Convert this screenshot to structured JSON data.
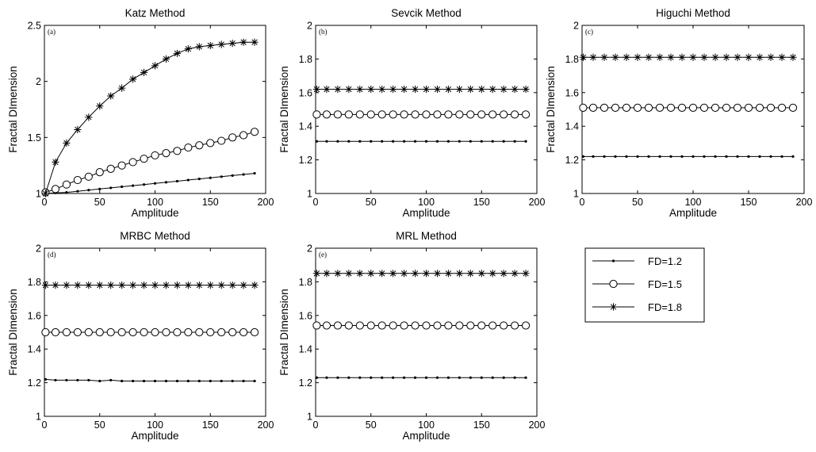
{
  "colors": {
    "background": "#ffffff",
    "ink": "#000000",
    "marker_fill": "#ffffff"
  },
  "legend": {
    "entries": [
      {
        "label": "FD=1.2",
        "marker": "dot"
      },
      {
        "label": "FD=1.5",
        "marker": "circle"
      },
      {
        "label": "FD=1.8",
        "marker": "asterisk"
      }
    ]
  },
  "chart_data": [
    {
      "type": "line",
      "tag": "(a)",
      "title": "Katz Method",
      "xlabel": "Amplitude",
      "ylabel": "Fractal DImension",
      "xlim": [
        0,
        200
      ],
      "ylim": [
        1,
        2.5
      ],
      "xticks": [
        0,
        50,
        100,
        150,
        200
      ],
      "yticks": [
        1,
        1.5,
        2,
        2.5
      ],
      "ytick_labels": [
        "1",
        "1.5",
        "2",
        "2.5"
      ],
      "x": [
        1,
        10,
        20,
        30,
        40,
        50,
        60,
        70,
        80,
        90,
        100,
        110,
        120,
        130,
        140,
        150,
        160,
        170,
        180,
        190
      ],
      "series": [
        {
          "name": "FD=1.2",
          "marker": "dot",
          "values": [
            1.0,
            1.005,
            1.01,
            1.02,
            1.03,
            1.04,
            1.05,
            1.06,
            1.07,
            1.08,
            1.09,
            1.1,
            1.11,
            1.12,
            1.13,
            1.14,
            1.15,
            1.16,
            1.17,
            1.18
          ]
        },
        {
          "name": "FD=1.5",
          "marker": "circle",
          "values": [
            1.01,
            1.04,
            1.08,
            1.12,
            1.15,
            1.19,
            1.22,
            1.25,
            1.28,
            1.31,
            1.34,
            1.36,
            1.38,
            1.41,
            1.43,
            1.45,
            1.47,
            1.5,
            1.52,
            1.55
          ]
        },
        {
          "name": "FD=1.8",
          "marker": "asterisk",
          "values": [
            1.0,
            1.28,
            1.45,
            1.57,
            1.68,
            1.78,
            1.87,
            1.94,
            2.02,
            2.08,
            2.14,
            2.2,
            2.25,
            2.29,
            2.31,
            2.32,
            2.33,
            2.34,
            2.35,
            2.35
          ]
        }
      ]
    },
    {
      "type": "line",
      "tag": "(b)",
      "title": "Sevcik Method",
      "xlabel": "Amplitude",
      "ylabel": "Fractal DImension",
      "xlim": [
        0,
        200
      ],
      "ylim": [
        1,
        2
      ],
      "xticks": [
        0,
        50,
        100,
        150,
        200
      ],
      "yticks": [
        1,
        1.2,
        1.4,
        1.6,
        1.8,
        2
      ],
      "ytick_labels": [
        "1",
        "1.2",
        "1.4",
        "1.6",
        "1.8",
        "2"
      ],
      "x": [
        1,
        10,
        20,
        30,
        40,
        50,
        60,
        70,
        80,
        90,
        100,
        110,
        120,
        130,
        140,
        150,
        160,
        170,
        180,
        190
      ],
      "series": [
        {
          "name": "FD=1.2",
          "marker": "dot",
          "values": [
            1.31,
            1.31,
            1.31,
            1.31,
            1.31,
            1.31,
            1.31,
            1.31,
            1.31,
            1.31,
            1.31,
            1.31,
            1.31,
            1.31,
            1.31,
            1.31,
            1.31,
            1.31,
            1.31,
            1.31
          ]
        },
        {
          "name": "FD=1.5",
          "marker": "circle",
          "values": [
            1.47,
            1.47,
            1.47,
            1.47,
            1.47,
            1.47,
            1.47,
            1.47,
            1.47,
            1.47,
            1.47,
            1.47,
            1.47,
            1.47,
            1.47,
            1.47,
            1.47,
            1.47,
            1.47,
            1.47
          ]
        },
        {
          "name": "FD=1.8",
          "marker": "asterisk",
          "values": [
            1.62,
            1.62,
            1.62,
            1.62,
            1.62,
            1.62,
            1.62,
            1.62,
            1.62,
            1.62,
            1.62,
            1.62,
            1.62,
            1.62,
            1.62,
            1.62,
            1.62,
            1.62,
            1.62,
            1.62
          ]
        }
      ]
    },
    {
      "type": "line",
      "tag": "(c)",
      "title": "Higuchi Method",
      "xlabel": "Amplitude",
      "ylabel": "Fractal DImension",
      "xlim": [
        0,
        200
      ],
      "ylim": [
        1,
        2
      ],
      "xticks": [
        0,
        50,
        100,
        150,
        200
      ],
      "yticks": [
        1,
        1.2,
        1.4,
        1.6,
        1.8,
        2
      ],
      "ytick_labels": [
        "1",
        "1.2",
        "1.4",
        "1.6",
        "1.8",
        "2"
      ],
      "x": [
        1,
        10,
        20,
        30,
        40,
        50,
        60,
        70,
        80,
        90,
        100,
        110,
        120,
        130,
        140,
        150,
        160,
        170,
        180,
        190
      ],
      "series": [
        {
          "name": "FD=1.2",
          "marker": "dot",
          "values": [
            1.22,
            1.22,
            1.22,
            1.22,
            1.22,
            1.22,
            1.22,
            1.22,
            1.22,
            1.22,
            1.22,
            1.22,
            1.22,
            1.22,
            1.22,
            1.22,
            1.22,
            1.22,
            1.22,
            1.22
          ]
        },
        {
          "name": "FD=1.5",
          "marker": "circle",
          "values": [
            1.51,
            1.51,
            1.51,
            1.51,
            1.51,
            1.51,
            1.51,
            1.51,
            1.51,
            1.51,
            1.51,
            1.51,
            1.51,
            1.51,
            1.51,
            1.51,
            1.51,
            1.51,
            1.51,
            1.51
          ]
        },
        {
          "name": "FD=1.8",
          "marker": "asterisk",
          "values": [
            1.81,
            1.81,
            1.81,
            1.81,
            1.81,
            1.81,
            1.81,
            1.81,
            1.81,
            1.81,
            1.81,
            1.81,
            1.81,
            1.81,
            1.81,
            1.81,
            1.81,
            1.81,
            1.81,
            1.81
          ]
        }
      ]
    },
    {
      "type": "line",
      "tag": "(d)",
      "title": "MRBC Method",
      "xlabel": "Amplitude",
      "ylabel": "Fractal DImension",
      "xlim": [
        0,
        200
      ],
      "ylim": [
        1,
        2
      ],
      "xticks": [
        0,
        50,
        100,
        150,
        200
      ],
      "yticks": [
        1,
        1.2,
        1.4,
        1.6,
        1.8,
        2
      ],
      "ytick_labels": [
        "1",
        "1.2",
        "1.4",
        "1.6",
        "1.8",
        "2"
      ],
      "x": [
        1,
        10,
        20,
        30,
        40,
        50,
        60,
        70,
        80,
        90,
        100,
        110,
        120,
        130,
        140,
        150,
        160,
        170,
        180,
        190
      ],
      "series": [
        {
          "name": "FD=1.2",
          "marker": "dot",
          "values": [
            1.22,
            1.215,
            1.215,
            1.215,
            1.215,
            1.21,
            1.215,
            1.21,
            1.21,
            1.21,
            1.21,
            1.21,
            1.21,
            1.21,
            1.21,
            1.21,
            1.21,
            1.21,
            1.21,
            1.21
          ]
        },
        {
          "name": "FD=1.5",
          "marker": "circle",
          "values": [
            1.5,
            1.5,
            1.5,
            1.5,
            1.5,
            1.5,
            1.5,
            1.5,
            1.5,
            1.5,
            1.5,
            1.5,
            1.5,
            1.5,
            1.5,
            1.5,
            1.5,
            1.5,
            1.5,
            1.5
          ]
        },
        {
          "name": "FD=1.8",
          "marker": "asterisk",
          "values": [
            1.78,
            1.78,
            1.78,
            1.78,
            1.78,
            1.78,
            1.78,
            1.78,
            1.78,
            1.78,
            1.78,
            1.78,
            1.78,
            1.78,
            1.78,
            1.78,
            1.78,
            1.78,
            1.78,
            1.78
          ]
        }
      ]
    },
    {
      "type": "line",
      "tag": "(e)",
      "title": "MRL Method",
      "xlabel": "Amplitude",
      "ylabel": "Fractal DImension",
      "xlim": [
        0,
        200
      ],
      "ylim": [
        1,
        2
      ],
      "xticks": [
        0,
        50,
        100,
        150,
        200
      ],
      "yticks": [
        1,
        1.2,
        1.4,
        1.6,
        1.8,
        2
      ],
      "ytick_labels": [
        "1",
        "1.2",
        "1.4",
        "1.6",
        "1.8",
        "2"
      ],
      "x": [
        1,
        10,
        20,
        30,
        40,
        50,
        60,
        70,
        80,
        90,
        100,
        110,
        120,
        130,
        140,
        150,
        160,
        170,
        180,
        190
      ],
      "series": [
        {
          "name": "FD=1.2",
          "marker": "dot",
          "values": [
            1.23,
            1.23,
            1.23,
            1.23,
            1.23,
            1.23,
            1.23,
            1.23,
            1.23,
            1.23,
            1.23,
            1.23,
            1.23,
            1.23,
            1.23,
            1.23,
            1.23,
            1.23,
            1.23,
            1.23
          ]
        },
        {
          "name": "FD=1.5",
          "marker": "circle",
          "values": [
            1.54,
            1.54,
            1.54,
            1.54,
            1.54,
            1.54,
            1.54,
            1.54,
            1.54,
            1.54,
            1.54,
            1.54,
            1.54,
            1.54,
            1.54,
            1.54,
            1.54,
            1.54,
            1.54,
            1.54
          ]
        },
        {
          "name": "FD=1.8",
          "marker": "asterisk",
          "values": [
            1.85,
            1.85,
            1.85,
            1.85,
            1.85,
            1.85,
            1.85,
            1.85,
            1.85,
            1.85,
            1.85,
            1.85,
            1.85,
            1.85,
            1.85,
            1.85,
            1.85,
            1.85,
            1.85,
            1.85
          ]
        }
      ]
    }
  ]
}
